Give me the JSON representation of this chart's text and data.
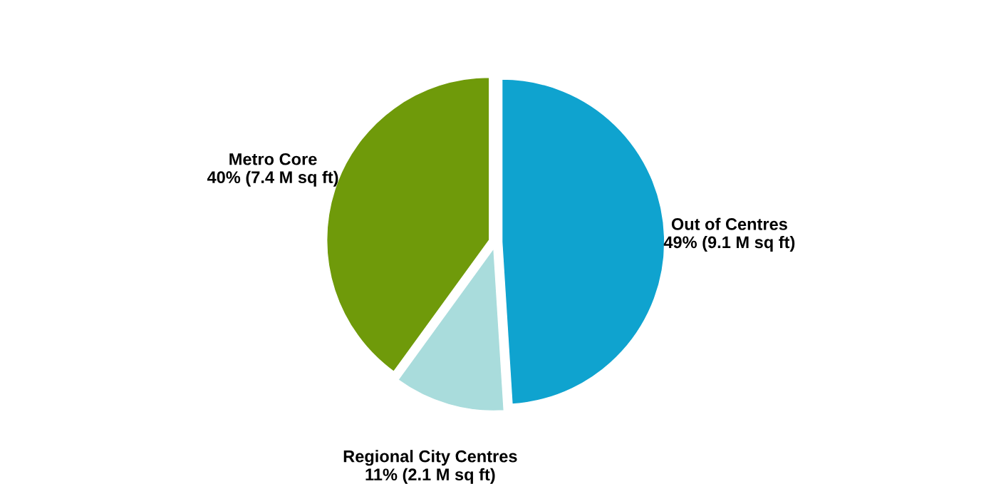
{
  "chart_data": {
    "type": "pie",
    "categories": [
      "Out of Centres",
      "Regional City Centres",
      "Metro Core"
    ],
    "values": [
      49,
      11,
      40
    ],
    "value_labels": [
      "49% (9.1 M sq ft)",
      "11% (2.1 M sq ft)",
      "40% (7.4 M sq ft)"
    ],
    "colors": [
      "#0fa3cf",
      "#a9dcdc",
      "#6f9a0a"
    ],
    "legend": false
  }
}
